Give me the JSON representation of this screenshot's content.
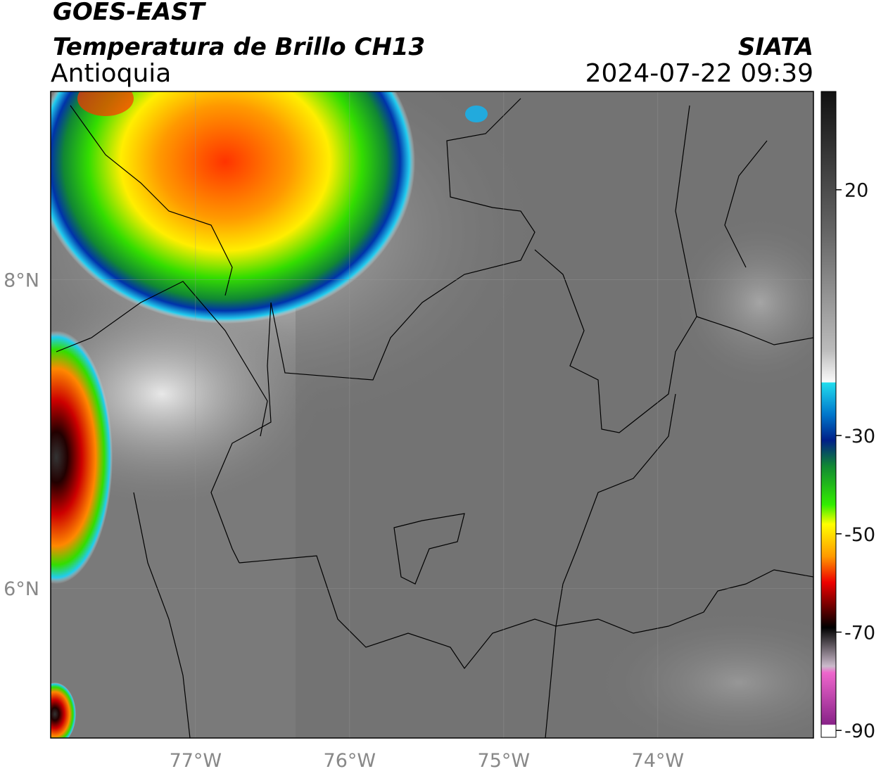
{
  "header": {
    "title": "GOES-EAST",
    "subtitle": "Temperatura de Brillo CH13",
    "region": "Antioquia",
    "source": "SIATA",
    "datetime": "2024-07-22 09:39"
  },
  "map": {
    "lon_range": [
      -77.94,
      -72.99
    ],
    "lat_range": [
      5.03,
      9.22
    ],
    "lon_ticks": [
      {
        "value": -77,
        "label": "77°W"
      },
      {
        "value": -76,
        "label": "76°W"
      },
      {
        "value": -75,
        "label": "75°W"
      },
      {
        "value": -74,
        "label": "74°W"
      }
    ],
    "lat_ticks": [
      {
        "value": 8,
        "label": "8°N"
      },
      {
        "value": 6,
        "label": "6°N"
      }
    ]
  },
  "colorbar": {
    "lim": [
      -91.4,
      40
    ],
    "ticks": [
      20,
      -30,
      -50,
      -70,
      -90
    ]
  }
}
